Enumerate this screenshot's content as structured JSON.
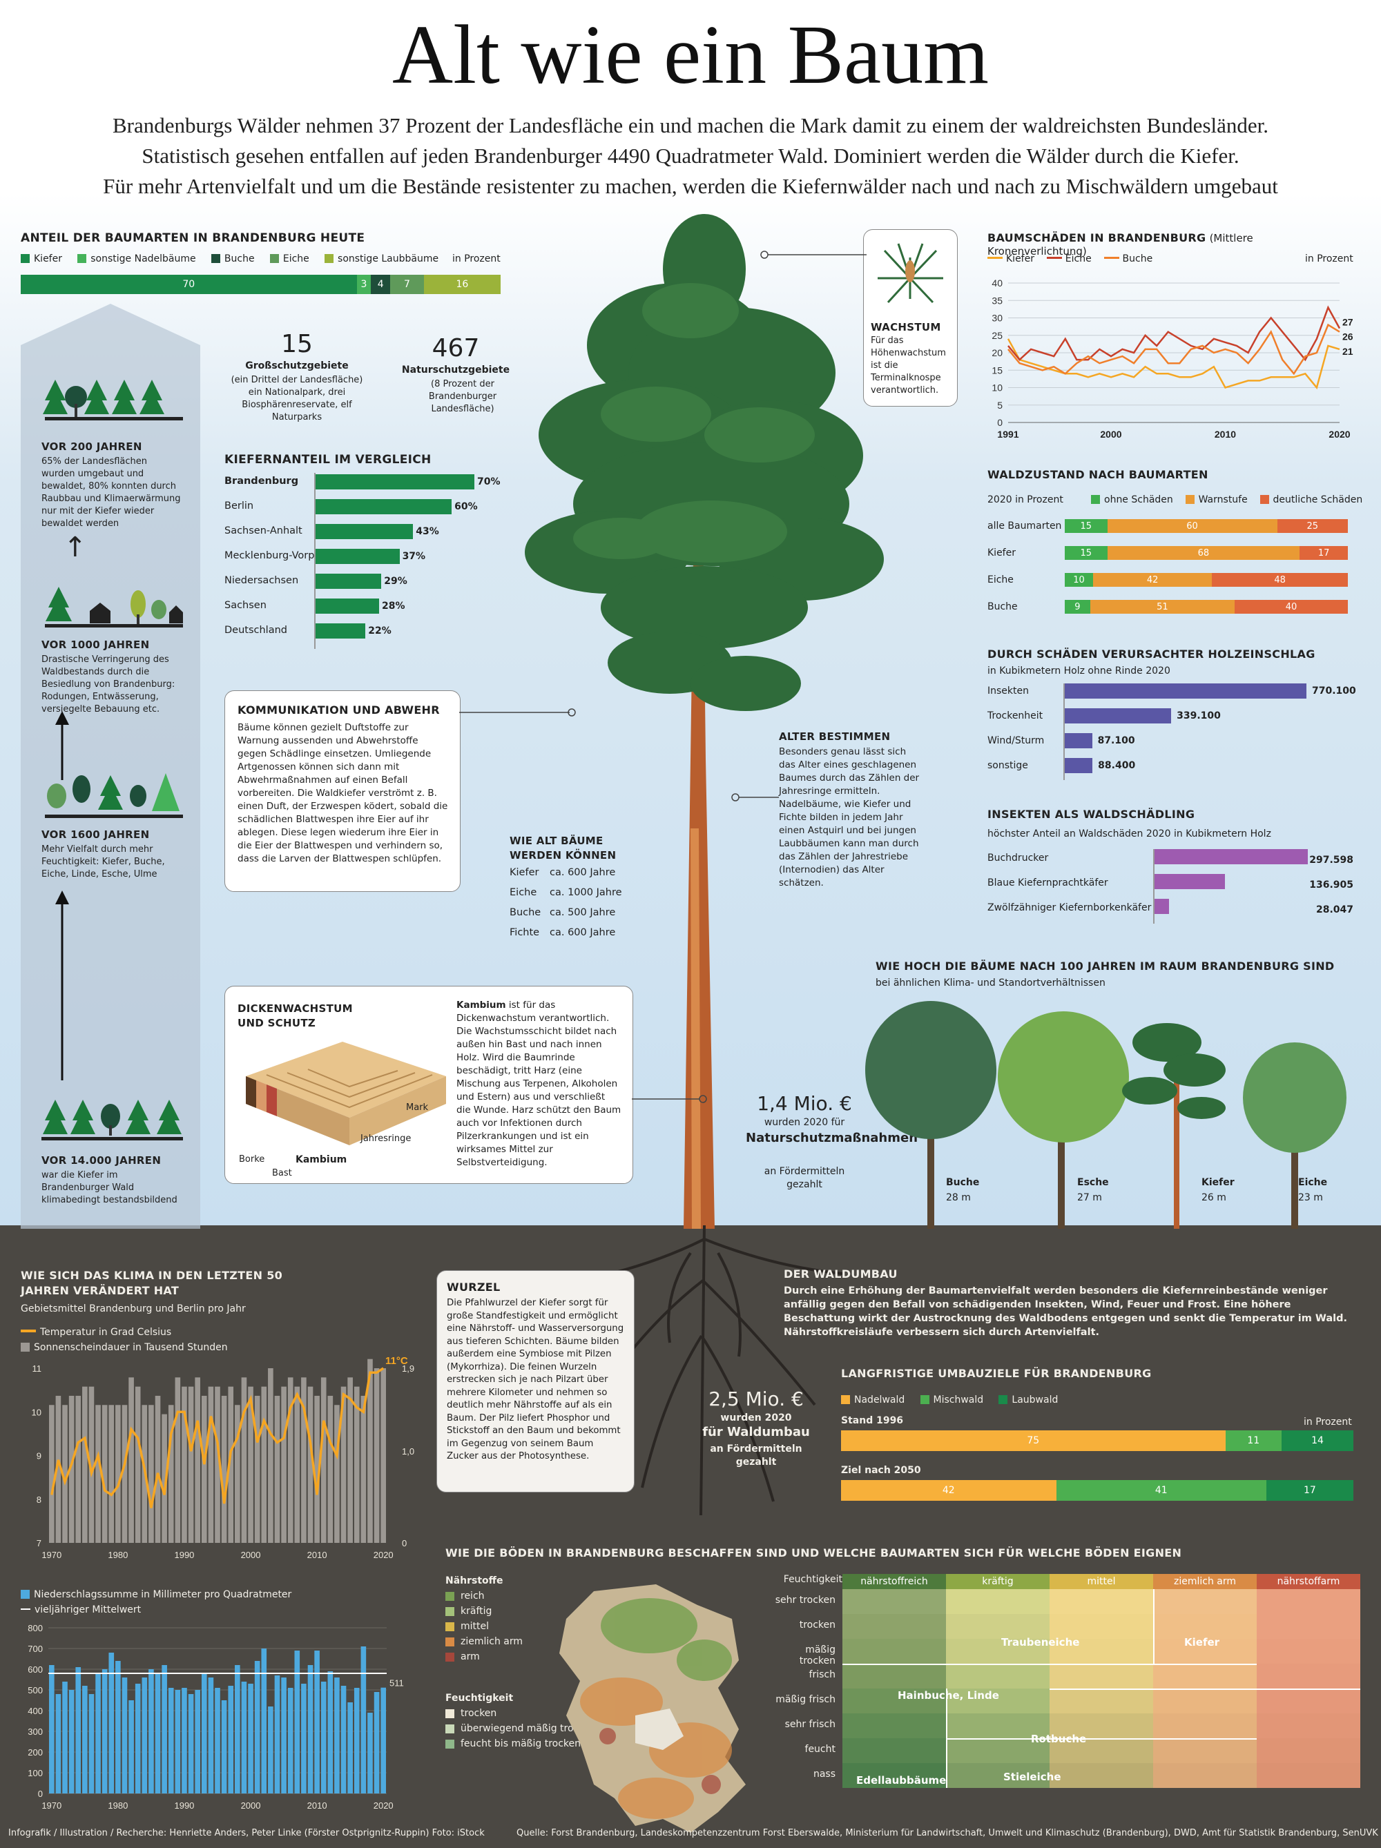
{
  "header": {
    "title": "Alt wie ein Baum",
    "intro_1": "Brandenburgs Wälder nehmen 37 Prozent der Landesfläche ein und machen die Mark damit zu einem der waldreichsten Bundesländer.",
    "intro_2": "Statistisch gesehen entfallen auf jeden Brandenburger 4490 Quadratmeter Wald. Dominiert werden die Wälder durch die Kiefer.",
    "intro_3": "Für mehr Artenvielfalt und um die Bestände resistenter zu machen, werden die Kiefernwälder nach und nach zu Mischwäldern umgebaut"
  },
  "colors": {
    "kiefer": "#1a8a4a",
    "sonst_nadel": "#45b25a",
    "buche": "#1e4e3a",
    "eiche": "#5f9a5a",
    "sonst_laub": "#9bb33a",
    "orange": "#f5a623",
    "red": "#c8412b",
    "ohne": "#3fae4e",
    "warn": "#e99a34",
    "deutlich": "#e0663a",
    "purple": "#9e5bb0",
    "blue_bar": "#5a57a5",
    "nadelwald": "#f7b03a",
    "mischwald": "#4caf50",
    "laubwald": "#1a8a4a",
    "precip": "#4eaadf",
    "sun": "#9c9893"
  },
  "species_share": {
    "title": "ANTEIL DER BAUMARTEN IN BRANDENBURG HEUTE",
    "legend": [
      "Kiefer",
      "sonstige Nadelbäume",
      "Buche",
      "Eiche",
      "sonstige Laubbäume"
    ],
    "unit": "in Prozent",
    "values": [
      70,
      3,
      4,
      7,
      16
    ]
  },
  "schutz": {
    "gross_num": "15",
    "gross_label": "Großschutzgebiete",
    "gross_note": "(ein Drittel der Landesfläche) ein Nationalpark, drei Biosphärenreservate, elf Naturparks",
    "natur_num": "467",
    "natur_label": "Naturschutzgebiete",
    "natur_note": "(8 Prozent der Brandenburger Landesfläche)"
  },
  "kiefernanteil": {
    "title": "KIEFERNANTEIL IM VERGLEICH",
    "rows": [
      {
        "label": "Brandenburg",
        "value": 70,
        "text": "70%"
      },
      {
        "label": "Berlin",
        "value": 60,
        "text": "60%"
      },
      {
        "label": "Sachsen-Anhalt",
        "value": 43,
        "text": "43%"
      },
      {
        "label": "Mecklenburg-Vorp.",
        "value": 37,
        "text": "37%"
      },
      {
        "label": "Niedersachsen",
        "value": 29,
        "text": "29%"
      },
      {
        "label": "Sachsen",
        "value": 28,
        "text": "28%"
      },
      {
        "label": "Deutschland",
        "value": 22,
        "text": "22%"
      }
    ]
  },
  "timeline": {
    "e200_title": "VOR 200 JAHREN",
    "e200_text": "65% der Landesflächen wurden umgebaut und bewaldet, 80% konnten durch Raubbau und Klimaerwärmung nur mit der Kiefer wieder bewaldet werden",
    "e1000_title": "VOR 1000 JAHREN",
    "e1000_text": "Drastische Verringerung des Waldbestands durch die Besiedlung von Brandenburg: Rodungen, Entwässerung, versiegelte Bebauung etc.",
    "e1600_title": "VOR 1600 JAHREN",
    "e1600_text": "Mehr Vielfalt durch mehr Feuchtigkeit: Kiefer, Buche, Eiche, Linde, Esche, Ulme",
    "e14000_title": "VOR 14.000 JAHREN",
    "e14000_text": "war die Kiefer im Brandenburger Wald klimabedingt bestandsbildend"
  },
  "kommunikation": {
    "title": "KOMMUNIKATION UND ABWEHR",
    "text": "Bäume können gezielt Duftstoffe zur Warnung aussenden und Abwehrstoffe gegen Schädlinge einsetzen. Umliegende Artgenossen können sich dann mit Abwehrmaßnahmen auf einen Befall vorbereiten. Die Waldkiefer verströmt z. B. einen Duft, der Erzwespen ködert, sobald die schädlichen Blattwespen ihre Eier auf ihr ablegen. Diese legen wiederum ihre Eier in die Eier der Blattwespen und verhindern so, dass die Larven der Blattwespen schlüpfen."
  },
  "wachstum": {
    "title": "WACHSTUM",
    "text": "Für das Höhenwachstum ist die Terminalknospe verantwortlich."
  },
  "alter_bestimmen": {
    "title": "ALTER BESTIMMEN",
    "text": "Besonders genau lässt sich das Alter eines geschlagenen Baumes durch das Zählen der Jahresringe ermitteln. Nadelbäume, wie Kiefer und Fichte bilden in jedem Jahr einen Astquirl und bei jungen Laubbäumen kann man durch das Zählen der Jahrestriebe (Internodien) das Alter schätzen."
  },
  "baum_alter": {
    "title": "WIE ALT BÄUME WERDEN KÖNNEN",
    "rows": [
      {
        "label": "Kiefer",
        "value": "ca. 600 Jahre"
      },
      {
        "label": "Eiche",
        "value": "ca. 1000 Jahre"
      },
      {
        "label": "Buche",
        "value": "ca. 500 Jahre"
      },
      {
        "label": "Fichte",
        "value": "ca. 600 Jahre"
      }
    ]
  },
  "dickenwachstum": {
    "title": "DICKENWACHSTUM UND SCHUTZ",
    "bold": "Kambium",
    "text": " ist für das Dickenwachstum verantwortlich. Die Wachstumsschicht bildet nach außen hin Bast und nach innen Holz. Wird die Baumrinde beschädigt, tritt Harz (eine Mischung aus Terpenen, Alkoholen und Estern) aus und verschließt die Wunde. Harz schützt den Baum auch vor Infektionen durch Pilzerkrankungen und ist ein wirksames Mittel zur Selbstverteidigung.",
    "labels": {
      "borke": "Borke",
      "bast": "Bast",
      "kambium": "Kambium",
      "jahresringe": "Jahresringe",
      "mark": "Mark"
    }
  },
  "schutz_funding": {
    "amount": "1,4 Mio. €",
    "line1": "wurden 2020 für",
    "bold": "Naturschutzmaßnahmen",
    "line2": "an Fördermitteln gezahlt"
  },
  "umbau_funding": {
    "amount": "2,5 Mio. €",
    "line1": "wurden 2020",
    "bold": "für Waldumbau",
    "line2": "an Fördermitteln gezahlt"
  },
  "baumschaeden": {
    "title": "BAUMSCHÄDEN IN BRANDENBURG",
    "subtitle": "(Mittlere Kronenverlichtung)",
    "unit": "in Prozent",
    "legend": [
      "Kiefer",
      "Eiche",
      "Buche"
    ],
    "yticks": [
      0,
      5,
      10,
      15,
      20,
      25,
      30,
      35,
      40
    ],
    "xticks": [
      "1991",
      "2000",
      "2010",
      "2020"
    ],
    "end_labels": [
      "27",
      "26",
      "21"
    ]
  },
  "waldzustand": {
    "title": "WALDZUSTAND NACH BAUMARTEN",
    "subtitle": "2020 in Prozent",
    "legend": [
      "ohne Schäden",
      "Warnstufe",
      "deutliche Schäden"
    ],
    "rows": [
      {
        "label": "alle Baumarten",
        "values": [
          15,
          60,
          25
        ]
      },
      {
        "label": "Kiefer",
        "values": [
          15,
          68,
          17
        ]
      },
      {
        "label": "Eiche",
        "values": [
          10,
          42,
          48
        ]
      },
      {
        "label": "Buche",
        "values": [
          9,
          51,
          40
        ]
      }
    ]
  },
  "holzeinschlag": {
    "title": "DURCH SCHÄDEN VERURSACHTER HOLZEINSCHLAG",
    "subtitle": "in Kubikmetern Holz ohne Rinde 2020",
    "rows": [
      {
        "label": "Insekten",
        "value": 770100,
        "text": "770.100"
      },
      {
        "label": "Trockenheit",
        "value": 339100,
        "text": "339.100"
      },
      {
        "label": "Wind/Sturm",
        "value": 87100,
        "text": "87.100"
      },
      {
        "label": "sonstige",
        "value": 88400,
        "text": "88.400"
      }
    ]
  },
  "insekten": {
    "title": "INSEKTEN ALS WALDSCHÄDLING",
    "subtitle": "höchster Anteil an Waldschäden 2020 in Kubikmetern Holz",
    "rows": [
      {
        "label": "Buchdrucker",
        "value": 297598,
        "text": "297.598"
      },
      {
        "label": "Blaue Kiefernprachtkäfer",
        "value": 136905,
        "text": "136.905"
      },
      {
        "label": "Zwölfzähniger Kiefernborkenkäfer",
        "value": 28047,
        "text": "28.047"
      }
    ]
  },
  "hoehe": {
    "title": "WIE HOCH DIE BÄUME NACH 100 JAHREN IM RAUM BRANDENBURG SIND",
    "subtitle": "bei ähnlichen Klima- und Standortverhältnissen",
    "trees": [
      {
        "name": "Buche",
        "height": "28 m"
      },
      {
        "name": "Esche",
        "height": "27 m"
      },
      {
        "name": "Kiefer",
        "height": "26 m"
      },
      {
        "name": "Eiche",
        "height": "23 m"
      }
    ]
  },
  "klima": {
    "title": "WIE SICH DAS KLIMA IN DEN LETZTEN 50 JAHREN VERÄNDERT HAT",
    "subtitle": "Gebietsmittel Brandenburg und Berlin pro Jahr",
    "legend_temp": "Temperatur in Grad Celsius",
    "legend_sun": "Sonnenscheindauer in Tausend Stunden",
    "temp_label": "11°C",
    "sun_label": "1,9",
    "left_ticks": [
      "11",
      "10",
      "9",
      "8",
      "7"
    ],
    "right_ticks": [
      "1,9",
      "1,0",
      "0"
    ],
    "xticks": [
      "1970",
      "1980",
      "1990",
      "2000",
      "2010",
      "2020"
    ],
    "legend_precip": "Niederschlagssumme in Millimeter pro Quadratmeter",
    "legend_mean": "vieljähriger Mittelwert",
    "precip_ticks": [
      "800",
      "700",
      "600",
      "500",
      "400",
      "300",
      "200",
      "100",
      "0"
    ],
    "precip_end": "511"
  },
  "wurzel": {
    "title": "WURZEL",
    "text": "Die Pfahlwurzel der Kiefer sorgt für große Standfestigkeit und ermöglicht eine Nährstoff- und Wasserversorgung aus tieferen Schichten. Bäume bilden außerdem eine Symbiose mit Pilzen (Mykorrhiza). Die feinen Wurzeln erstrecken sich je nach Pilzart über mehrere Kilometer und nehmen so deutlich mehr Nährstoffe auf als ein Baum. Der Pilz liefert Phosphor und Stickstoff an den Baum und bekommt im Gegenzug von seinem Baum Zucker aus der Photosynthese."
  },
  "waldumbau": {
    "title": "DER WALDUMBAU",
    "text": "Durch eine Erhöhung der Baumartenvielfalt werden besonders die Kiefernreinbestände weniger anfällig gegen den Befall von schädigenden Insekten, Wind, Feuer und Frost. Eine höhere Beschattung wirkt der Austrocknung des Waldbodens entgegen und senkt die Temperatur im Wald.  Nährstoffkreisläufe verbessern sich durch Artenvielfalt."
  },
  "umbauziele": {
    "title": "LANGFRISTIGE UMBAUZIELE FÜR BRANDENBURG",
    "legend": [
      "Nadelwald",
      "Mischwald",
      "Laubwald"
    ],
    "unit": "in Prozent",
    "rows": [
      {
        "label": "Stand 1996",
        "values": [
          75,
          11,
          14
        ]
      },
      {
        "label": "Ziel nach 2050",
        "values": [
          42,
          41,
          17
        ]
      }
    ]
  },
  "boeden": {
    "title": "WIE DIE BÖDEN IN BRANDENBURG BESCHAFFEN SIND UND WELCHE BAUMARTEN SICH FÜR WELCHE BÖDEN EIGNEN",
    "naehr_title": "Nährstoffe",
    "naehr": [
      "reich",
      "kräftig",
      "mittel",
      "ziemlich arm",
      "arm"
    ],
    "feucht_title": "Feuchtigkeit",
    "feucht": [
      "trocken",
      "überwiegend mäßig trocken",
      "feucht bis mäßig trocken"
    ],
    "col_header": "Feuchtigkeit",
    "cols": [
      "nährstoffreich",
      "kräftig",
      "mittel",
      "ziemlich arm",
      "nährstoffarm"
    ],
    "rows": [
      "sehr trocken",
      "trocken",
      "mäßig trocken",
      "frisch",
      "mäßig frisch",
      "sehr frisch",
      "feucht",
      "nass"
    ],
    "species": {
      "trauben": "Traubeneiche",
      "kiefer": "Kiefer",
      "hain": "Hainbuche, Linde",
      "rot": "Rotbuche",
      "edel": "Edellaubbäume",
      "stiel": "Stieleiche"
    }
  },
  "footer": {
    "credits": "Infografik / Illustration / Recherche: Henriette Anders, Peter Linke (Förster Ostprignitz-Ruppin) Foto: iStock",
    "sources": "Quelle: Forst Brandenburg, Landeskompetenzzentrum Forst Eberswalde, Ministerium für Landwirtschaft, Umwelt und Klimaschutz (Brandenburg), DWD, Amt für Statistik Brandenburg, SenUVK"
  },
  "chart_data": [
    {
      "type": "line",
      "title": "BAUMSCHÄDEN IN BRANDENBURG",
      "x": [
        1991,
        1992,
        1993,
        1994,
        1995,
        1996,
        1997,
        1998,
        1999,
        2000,
        2001,
        2002,
        2003,
        2004,
        2005,
        2006,
        2007,
        2008,
        2009,
        2010,
        2011,
        2012,
        2013,
        2014,
        2015,
        2016,
        2017,
        2018,
        2019,
        2020
      ],
      "ylim": [
        0,
        40
      ],
      "series": [
        {
          "name": "Kiefer",
          "values": [
            24,
            18,
            17,
            16,
            15,
            14,
            14,
            13,
            14,
            13,
            14,
            13,
            16,
            14,
            14,
            13,
            13,
            14,
            16,
            10,
            11,
            12,
            12,
            13,
            13,
            13,
            14,
            10,
            22,
            21
          ]
        },
        {
          "name": "Eiche",
          "values": [
            22,
            18,
            21,
            20,
            19,
            24,
            18,
            18,
            21,
            19,
            21,
            20,
            25,
            22,
            26,
            24,
            22,
            21,
            24,
            23,
            22,
            20,
            26,
            30,
            26,
            22,
            18,
            24,
            33,
            27
          ]
        },
        {
          "name": "Buche",
          "values": [
            21,
            17,
            16,
            15,
            16,
            14,
            17,
            19,
            17,
            18,
            19,
            17,
            21,
            21,
            17,
            17,
            21,
            22,
            20,
            21,
            20,
            17,
            21,
            26,
            18,
            14,
            19,
            20,
            28,
            26
          ]
        }
      ]
    },
    {
      "type": "bar",
      "title": "KIEFERNANTEIL IM VERGLEICH",
      "categories": [
        "Brandenburg",
        "Berlin",
        "Sachsen-Anhalt",
        "Mecklenburg-Vorp.",
        "Niedersachsen",
        "Sachsen",
        "Deutschland"
      ],
      "values": [
        70,
        60,
        43,
        37,
        29,
        28,
        22
      ]
    },
    {
      "type": "bar",
      "title": "WIE SICH DAS KLIMA IN DEN LETZTEN 50 JAHREN VERÄNDERT HAT",
      "x": [
        1970,
        1971,
        1972,
        1973,
        1974,
        1975,
        1976,
        1977,
        1978,
        1979,
        1980,
        1981,
        1982,
        1983,
        1984,
        1985,
        1986,
        1987,
        1988,
        1989,
        1990,
        1991,
        1992,
        1993,
        1994,
        1995,
        1996,
        1997,
        1998,
        1999,
        2000,
        2001,
        2002,
        2003,
        2004,
        2005,
        2006,
        2007,
        2008,
        2009,
        2010,
        2011,
        2012,
        2013,
        2014,
        2015,
        2016,
        2017,
        2018,
        2019,
        2020
      ],
      "series": [
        {
          "name": "Temperatur in Grad Celsius",
          "values": [
            8.1,
            8.9,
            8.4,
            8.8,
            9.3,
            9.4,
            8.6,
            9.0,
            8.2,
            8.1,
            8.3,
            8.8,
            9.6,
            9.4,
            8.7,
            7.8,
            8.6,
            8.1,
            9.5,
            10.0,
            10.0,
            9.1,
            9.8,
            8.8,
            9.9,
            9.3,
            7.9,
            9.1,
            9.4,
            10.0,
            10.3,
            9.3,
            9.8,
            9.5,
            9.3,
            9.4,
            10.1,
            10.4,
            10.1,
            9.3,
            8.1,
            9.8,
            9.3,
            9.0,
            10.4,
            10.3,
            10.1,
            10.0,
            10.9,
            10.9,
            11.0
          ]
        },
        {
          "name": "Sonnenscheindauer in Tausend Stunden",
          "values": [
            1.5,
            1.6,
            1.5,
            1.6,
            1.6,
            1.7,
            1.7,
            1.5,
            1.5,
            1.5,
            1.5,
            1.5,
            1.8,
            1.7,
            1.5,
            1.5,
            1.6,
            1.4,
            1.5,
            1.8,
            1.7,
            1.7,
            1.8,
            1.6,
            1.7,
            1.7,
            1.6,
            1.7,
            1.5,
            1.8,
            1.7,
            1.6,
            1.7,
            1.9,
            1.6,
            1.7,
            1.8,
            1.7,
            1.8,
            1.7,
            1.6,
            1.8,
            1.6,
            1.5,
            1.7,
            1.8,
            1.7,
            1.6,
            2.0,
            1.9,
            1.9
          ]
        }
      ],
      "ylim_temp": [
        7,
        11
      ],
      "ylim_sun": [
        0,
        1.9
      ]
    },
    {
      "type": "bar",
      "title": "Niederschlagssumme in Millimeter pro Quadratmeter",
      "x": [
        1970,
        1971,
        1972,
        1973,
        1974,
        1975,
        1976,
        1977,
        1978,
        1979,
        1980,
        1981,
        1982,
        1983,
        1984,
        1985,
        1986,
        1987,
        1988,
        1989,
        1990,
        1991,
        1992,
        1993,
        1994,
        1995,
        1996,
        1997,
        1998,
        1999,
        2000,
        2001,
        2002,
        2003,
        2004,
        2005,
        2006,
        2007,
        2008,
        2009,
        2010,
        2011,
        2012,
        2013,
        2014,
        2015,
        2016,
        2017,
        2018,
        2019,
        2020
      ],
      "values": [
        620,
        480,
        540,
        500,
        610,
        520,
        480,
        580,
        600,
        680,
        640,
        560,
        450,
        530,
        560,
        600,
        580,
        620,
        510,
        500,
        510,
        480,
        500,
        580,
        560,
        510,
        450,
        520,
        620,
        540,
        530,
        640,
        700,
        420,
        570,
        560,
        510,
        690,
        530,
        620,
        690,
        540,
        590,
        560,
        520,
        440,
        510,
        710,
        390,
        490,
        511
      ],
      "mean": 580,
      "ylim": [
        0,
        800
      ]
    }
  ]
}
